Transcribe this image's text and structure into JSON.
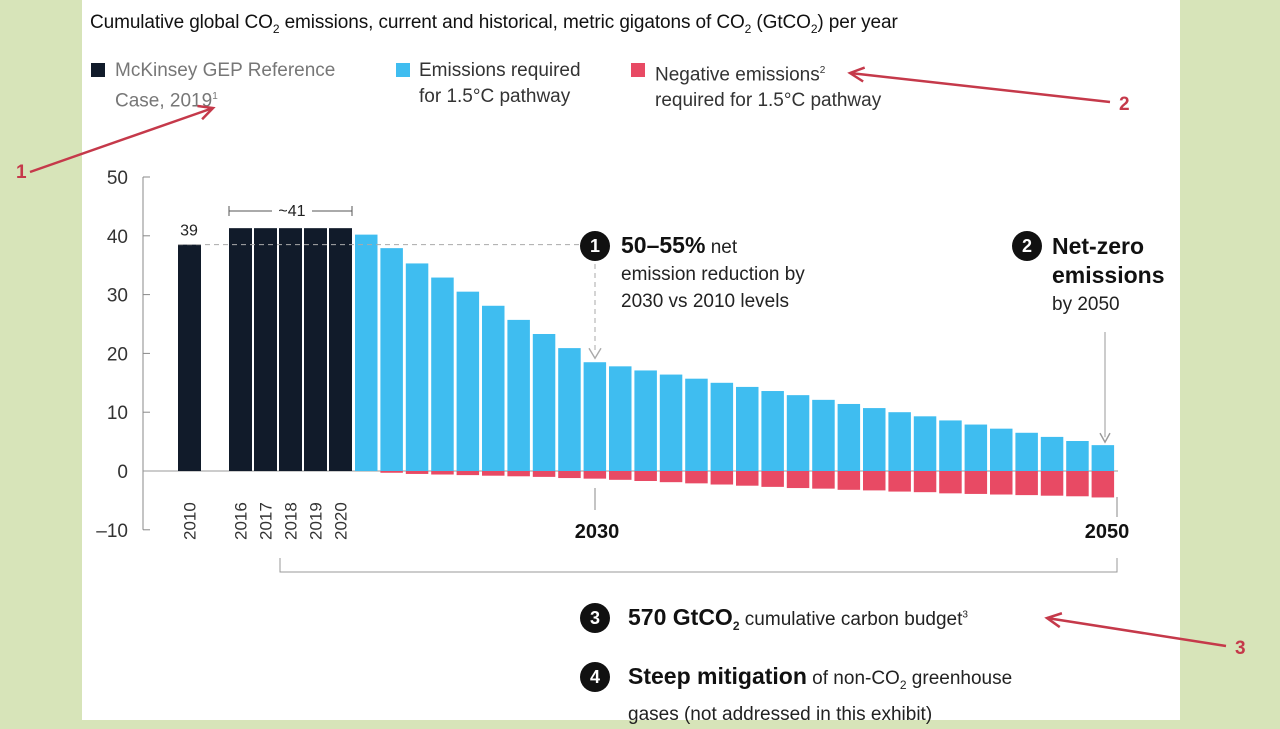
{
  "title": {
    "main": "Cumulative global CO",
    "sub1": "2",
    "mid": " emissions, current and historical, metric gigatons of CO",
    "sub2": "2",
    "mid2": " (GtCO",
    "sub3": "2",
    "end": ") per year"
  },
  "legend": [
    {
      "label": "McKinsey GEP Reference\nCase, 2019",
      "sup": "1",
      "color": "#111b2a"
    },
    {
      "label": "Emissions required\nfor 1.5°C pathway",
      "sup": "",
      "color": "#3fbdf0"
    },
    {
      "label": "Negative emissions",
      "sup": "2",
      "label2": "required for 1.5°C pathway",
      "color": "#e84a64"
    }
  ],
  "colors": {
    "reference": "#111b2a",
    "required": "#3fbdf0",
    "negative": "#e84a64",
    "annotation_red": "#c5394a"
  },
  "chart_data": {
    "type": "bar",
    "ylim": [
      -10,
      50
    ],
    "yticks": [
      "50",
      "40",
      "30",
      "20",
      "10",
      "0",
      "–10"
    ],
    "ytick_values": [
      50,
      40,
      30,
      20,
      10,
      0,
      -10
    ],
    "x_labels": [
      "2010",
      "2016",
      "2017",
      "2018",
      "2019",
      "2020",
      "2030",
      "2050"
    ],
    "reference_series": {
      "name": "McKinsey GEP Reference Case, 2019",
      "categories": [
        "2010",
        "2016",
        "2017",
        "2018",
        "2019",
        "2020"
      ],
      "values": [
        38.5,
        41.3,
        41.3,
        41.3,
        41.3,
        41.3
      ]
    },
    "required_series": {
      "name": "Emissions required for 1.5°C pathway",
      "years": [
        2021,
        2022,
        2023,
        2024,
        2025,
        2026,
        2027,
        2028,
        2029,
        2030,
        2031,
        2032,
        2033,
        2034,
        2035,
        2036,
        2037,
        2038,
        2039,
        2040,
        2041,
        2042,
        2043,
        2044,
        2045,
        2046,
        2047,
        2048,
        2049,
        2050
      ],
      "values": [
        40.2,
        37.9,
        35.3,
        32.9,
        30.5,
        28.1,
        25.7,
        23.3,
        20.9,
        18.5,
        17.8,
        17.1,
        16.4,
        15.7,
        15.0,
        14.3,
        13.6,
        12.9,
        12.1,
        11.4,
        10.7,
        10.0,
        9.3,
        8.6,
        7.9,
        7.2,
        6.5,
        5.8,
        5.1,
        4.4
      ]
    },
    "negative_series": {
      "name": "Negative emissions required for 1.5°C pathway",
      "years": [
        2021,
        2022,
        2023,
        2024,
        2025,
        2026,
        2027,
        2028,
        2029,
        2030,
        2031,
        2032,
        2033,
        2034,
        2035,
        2036,
        2037,
        2038,
        2039,
        2040,
        2041,
        2042,
        2043,
        2044,
        2045,
        2046,
        2047,
        2048,
        2049,
        2050
      ],
      "values": [
        0,
        -0.3,
        -0.5,
        -0.6,
        -0.7,
        -0.8,
        -0.9,
        -1.0,
        -1.2,
        -1.3,
        -1.5,
        -1.7,
        -1.9,
        -2.1,
        -2.3,
        -2.5,
        -2.7,
        -2.9,
        -3.0,
        -3.2,
        -3.3,
        -3.5,
        -3.6,
        -3.8,
        -3.9,
        -4.0,
        -4.1,
        -4.2,
        -4.3,
        -4.5
      ]
    },
    "data_labels": {
      "bar_2010": "39",
      "range_2016_2020": "~41"
    }
  },
  "annotations": {
    "a1": {
      "num": "1",
      "bold": "50–55%",
      "rest1": " net",
      "rest2": "emission reduction by",
      "rest3": "2030 vs 2010 levels"
    },
    "a2": {
      "num": "2",
      "bold1": "Net-zero",
      "bold2": "emissions",
      "rest": "by 2050"
    },
    "a3": {
      "num": "3",
      "bold": "570 GtCO",
      "sub": "2",
      "rest": " cumulative carbon budget",
      "sup": "3"
    },
    "a4": {
      "num": "4",
      "bold": "Steep mitigation",
      "rest1": " of non-CO",
      "sub": "2",
      "rest2": " greenhouse",
      "rest3": "gases (not addressed in this exhibit)"
    }
  },
  "callouts": [
    "1",
    "2",
    "3"
  ]
}
